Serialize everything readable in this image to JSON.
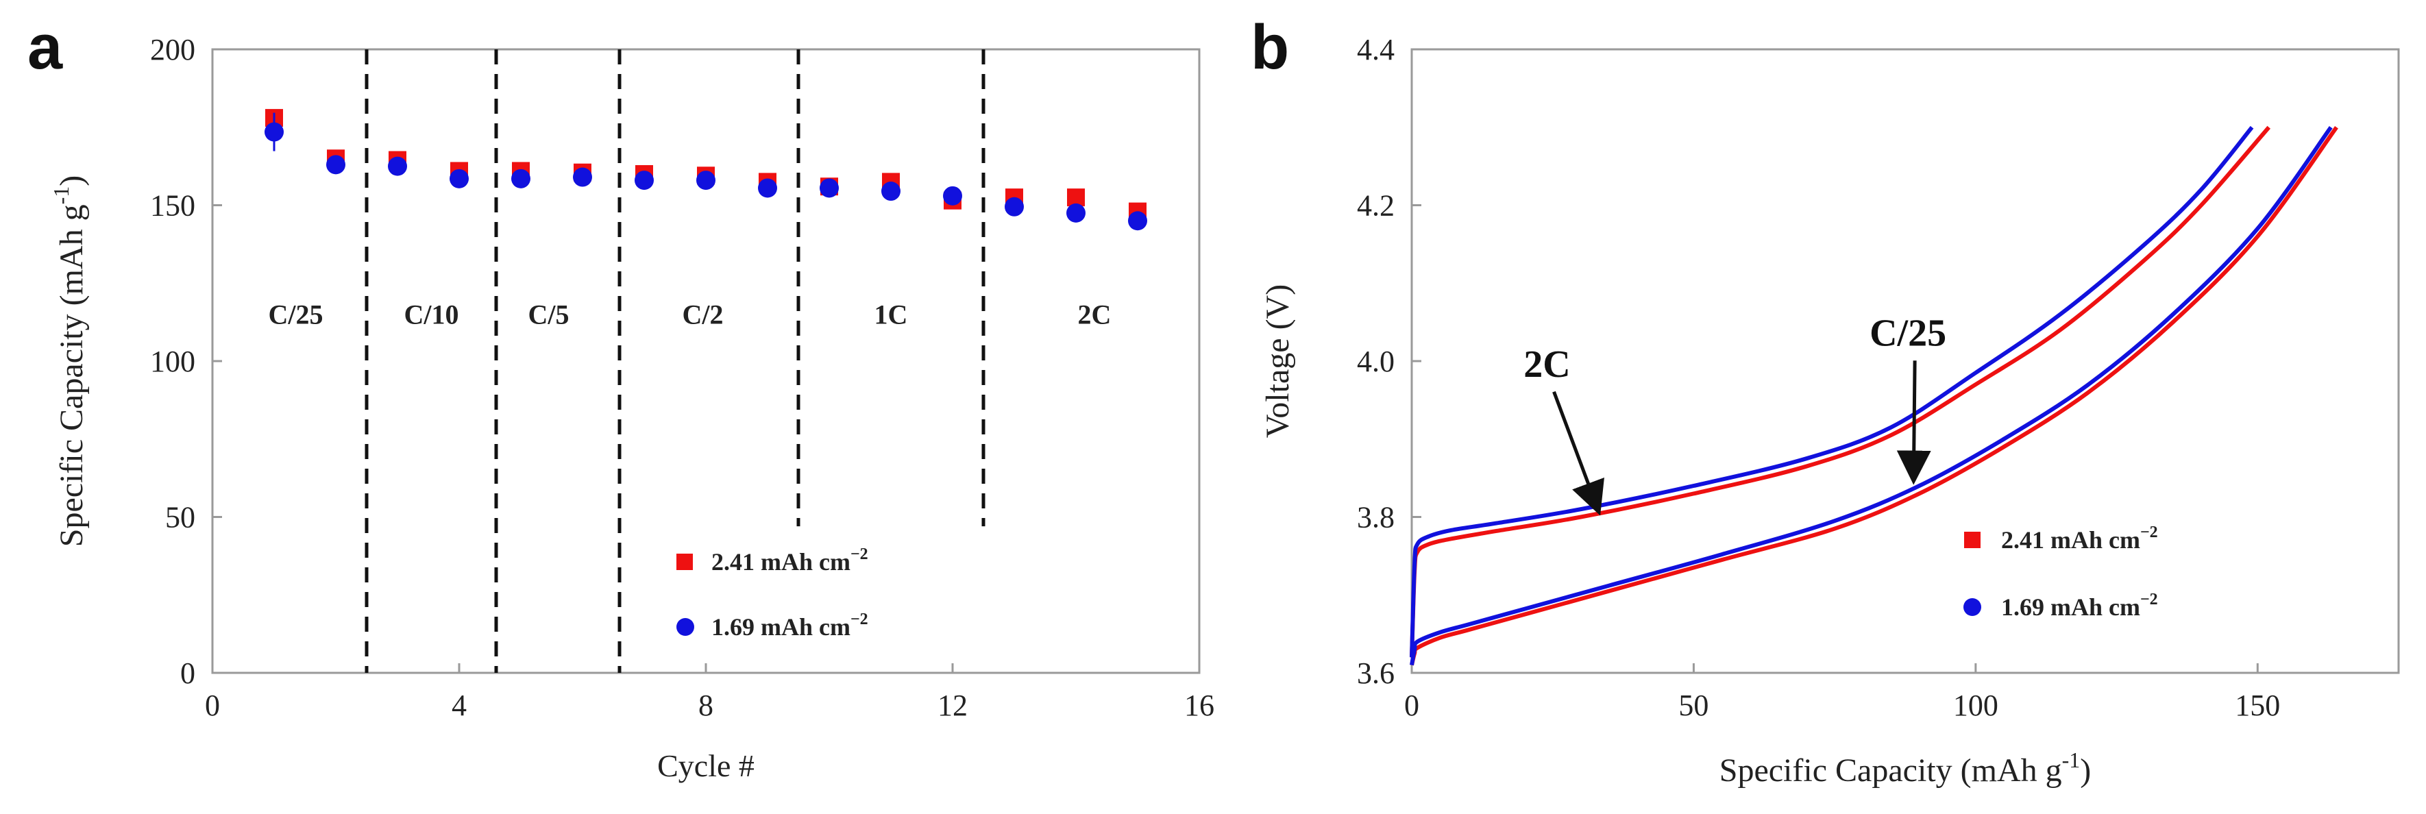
{
  "colors": {
    "red": "#ee1111",
    "blue": "#1111dd",
    "axis": "#444444",
    "text": "#222222"
  },
  "chart_data": [
    {
      "panel_label": "a",
      "type": "scatter",
      "xlabel": "Cycle #",
      "ylabel": "Specific Capacity (mAh g",
      "ylabel_sup": "-1",
      "ylabel_end": ")",
      "xlim": [
        0,
        16
      ],
      "ylim": [
        0,
        200
      ],
      "xticks": [
        "0",
        "4",
        "8",
        "12",
        "16"
      ],
      "yticks": [
        "0",
        "50",
        "100",
        "150",
        "200"
      ],
      "dividers": [
        2.5,
        4.6,
        6.6,
        9.5,
        12.5
      ],
      "rate_labels": [
        {
          "text": "C/25",
          "x": 1.35,
          "y": 112
        },
        {
          "text": "C/10",
          "x": 3.55,
          "y": 112
        },
        {
          "text": "C/5",
          "x": 5.45,
          "y": 112
        },
        {
          "text": "C/2",
          "x": 7.95,
          "y": 112
        },
        {
          "text": "1C",
          "x": 11.0,
          "y": 112
        },
        {
          "text": "2C",
          "x": 14.3,
          "y": 112
        }
      ],
      "legend": [
        {
          "text": "2.41 mAh cm",
          "sup": "−2",
          "marker": "square"
        },
        {
          "text": "1.69 mAh cm",
          "sup": "−2",
          "marker": "circle"
        }
      ],
      "series": [
        {
          "name": "2.41 mAh cm−2",
          "marker": "square",
          "x": [
            1,
            2,
            3,
            4,
            5,
            6,
            7,
            8,
            9,
            10,
            11,
            12,
            13,
            14,
            15
          ],
          "y": [
            178,
            165,
            164.5,
            161,
            161,
            160.5,
            160,
            159.5,
            157.5,
            156,
            157.5,
            151.5,
            152.5,
            152.5,
            148
          ]
        },
        {
          "name": "1.69 mAh cm−2",
          "marker": "circle",
          "x": [
            1,
            2,
            3,
            4,
            5,
            6,
            7,
            8,
            9,
            10,
            11,
            12,
            13,
            14,
            15
          ],
          "y": [
            173.5,
            163,
            162.5,
            158.5,
            158.5,
            159,
            158,
            158,
            155.5,
            155.5,
            154.5,
            153,
            149.5,
            147.5,
            145
          ]
        }
      ]
    },
    {
      "panel_label": "b",
      "type": "line",
      "xlabel": "Specific Capacity (mAh g",
      "xlabel_sup": "-1",
      "xlabel_end": ")",
      "ylabel": "Voltage (V)",
      "xlim": [
        0,
        175
      ],
      "ylim": [
        3.6,
        4.4
      ],
      "xticks": [
        "0",
        "50",
        "100",
        "150"
      ],
      "yticks": [
        "3.6",
        "3.8",
        "4.0",
        "4.2",
        "4.4"
      ],
      "annotations": [
        {
          "text": "2C",
          "x": 24,
          "y": 3.98,
          "arrow_to_x": 33,
          "arrow_to_y": 3.81
        },
        {
          "text": "C/25",
          "x": 88,
          "y": 4.02,
          "arrow_to_x": 89,
          "arrow_to_y": 3.85
        }
      ],
      "legend": [
        {
          "text": "2.41 mAh cm",
          "sup": "−2",
          "marker": "square"
        },
        {
          "text": "1.69 mAh cm",
          "sup": "−2",
          "marker": "circle"
        }
      ],
      "series": [
        {
          "name": "2.41 mAh cm−2 (2C)",
          "color_key": "red",
          "x": [
            0,
            0.5,
            1,
            3,
            7,
            15,
            30,
            50,
            70,
            85,
            100,
            115,
            130,
            140,
            152
          ],
          "y": [
            3.62,
            3.73,
            3.755,
            3.765,
            3.772,
            3.782,
            3.8,
            3.83,
            3.865,
            3.905,
            3.97,
            4.04,
            4.13,
            4.2,
            4.3
          ]
        },
        {
          "name": "1.69 mAh cm−2 (2C)",
          "color_key": "blue",
          "x": [
            0,
            0.5,
            1,
            3,
            7,
            15,
            30,
            50,
            70,
            85,
            100,
            115,
            130,
            140,
            149
          ],
          "y": [
            3.62,
            3.74,
            3.765,
            3.775,
            3.783,
            3.792,
            3.81,
            3.84,
            3.875,
            3.915,
            3.985,
            4.06,
            4.15,
            4.22,
            4.3
          ]
        },
        {
          "name": "2.41 mAh cm−2 (C/25)",
          "color_key": "red",
          "x": [
            0,
            0.5,
            1,
            5,
            10,
            20,
            35,
            55,
            75,
            90,
            105,
            120,
            135,
            150,
            164
          ],
          "y": [
            3.61,
            3.625,
            3.632,
            3.645,
            3.655,
            3.675,
            3.705,
            3.745,
            3.785,
            3.83,
            3.89,
            3.96,
            4.05,
            4.16,
            4.3
          ]
        },
        {
          "name": "1.69 mAh cm−2 (C/25)",
          "color_key": "blue",
          "x": [
            0,
            0.5,
            1,
            5,
            10,
            20,
            35,
            55,
            75,
            90,
            105,
            120,
            135,
            150,
            163
          ],
          "y": [
            3.61,
            3.63,
            3.64,
            3.652,
            3.662,
            3.682,
            3.712,
            3.752,
            3.795,
            3.84,
            3.9,
            3.97,
            4.06,
            4.17,
            4.3
          ]
        }
      ]
    }
  ]
}
